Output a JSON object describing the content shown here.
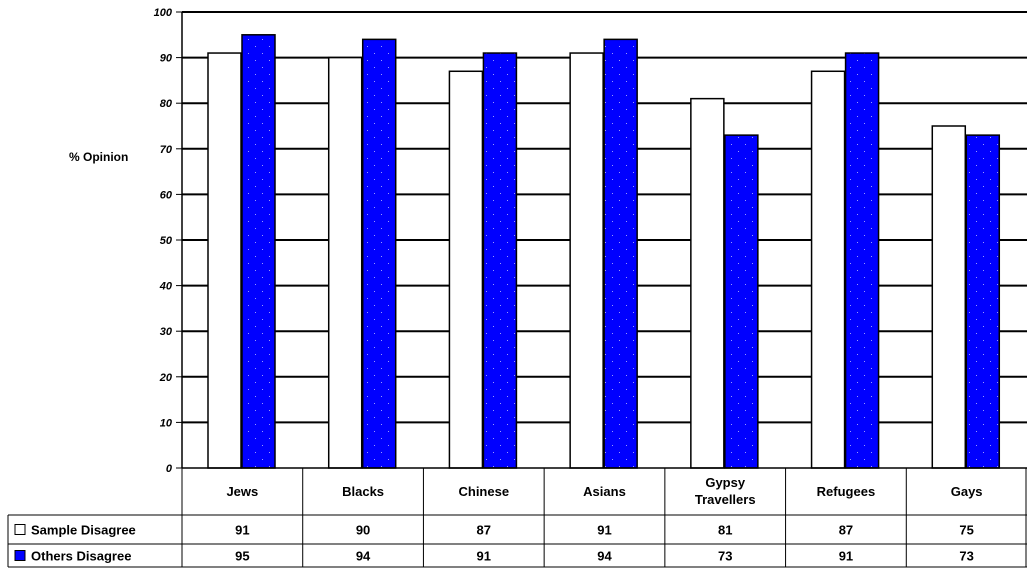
{
  "chart_data": {
    "type": "bar",
    "ylabel": "% Opinion",
    "ylim": [
      0,
      100
    ],
    "yticks": [
      0,
      10,
      20,
      30,
      40,
      50,
      60,
      70,
      80,
      90,
      100
    ],
    "grid": true,
    "categories": [
      [
        "Jews"
      ],
      [
        "Blacks"
      ],
      [
        "Chinese"
      ],
      [
        "Asians"
      ],
      [
        "Gypsy",
        "Travellers"
      ],
      [
        "Refugees"
      ],
      [
        "Gays"
      ]
    ],
    "series": [
      {
        "name": "Sample Disagree",
        "values": [
          91,
          90,
          87,
          91,
          81,
          87,
          75
        ],
        "color": "#ffffff"
      },
      {
        "name": "Others Disagree",
        "values": [
          95,
          94,
          91,
          94,
          73,
          91,
          73
        ],
        "color": "#0000ff"
      }
    ],
    "data_table": true
  }
}
